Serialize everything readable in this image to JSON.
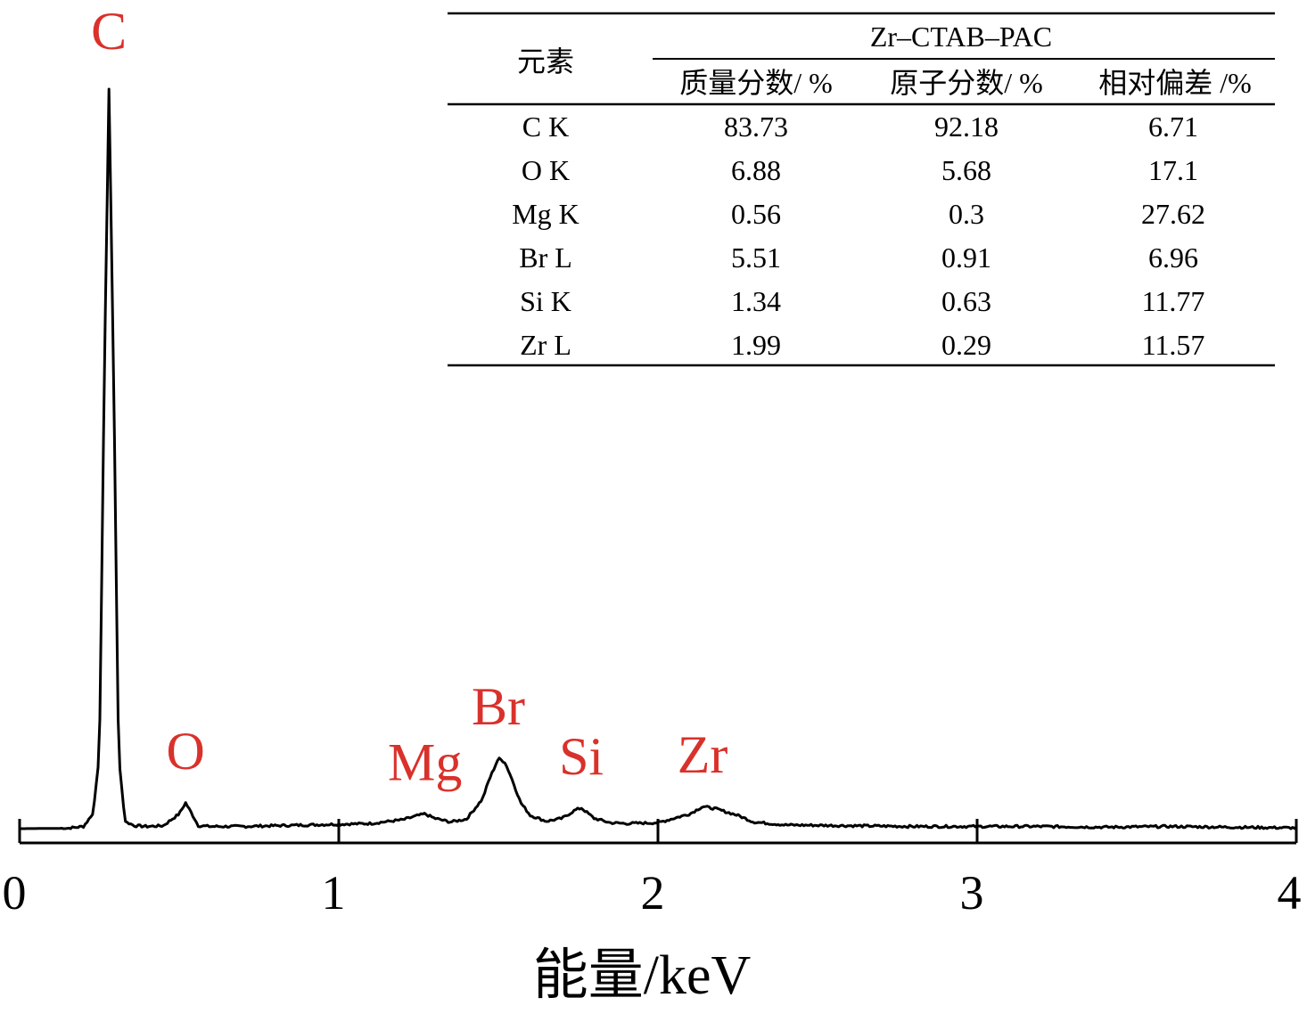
{
  "chart_data": {
    "type": "line",
    "xlabel": "能量/keV",
    "ylabel": "",
    "xlim": [
      0,
      4
    ],
    "x_ticks": [
      "0",
      "1",
      "2",
      "3",
      "4"
    ],
    "grid": false,
    "series": [
      {
        "x": [
          0.0,
          0.15,
          0.2,
          0.23,
          0.25,
          0.265,
          0.28,
          0.295,
          0.31,
          0.33,
          0.36,
          0.4,
          0.45,
          0.5,
          0.52,
          0.54,
          0.56,
          0.6,
          0.7,
          0.8,
          0.9,
          1.0,
          1.1,
          1.2,
          1.25,
          1.27,
          1.3,
          1.35,
          1.4,
          1.45,
          1.47,
          1.5,
          1.52,
          1.54,
          1.57,
          1.6,
          1.65,
          1.7,
          1.74,
          1.76,
          1.8,
          1.85,
          1.9,
          2.0,
          2.05,
          2.1,
          2.14,
          2.18,
          2.25,
          2.3,
          2.4,
          2.6,
          2.8,
          3.0,
          3.2,
          3.4,
          3.6,
          3.8,
          4.0
        ],
        "y": [
          0,
          0.5,
          3,
          20,
          100,
          600,
          1000,
          600,
          100,
          10,
          4,
          3,
          4,
          20,
          35,
          20,
          4,
          3,
          3,
          4,
          5,
          6,
          7,
          12,
          18,
          20,
          14,
          9,
          13,
          40,
          65,
          95,
          90,
          70,
          35,
          18,
          10,
          14,
          25,
          28,
          14,
          8,
          7,
          8,
          14,
          20,
          30,
          27,
          18,
          9,
          5,
          4,
          3,
          3,
          3,
          2,
          3,
          2,
          1
        ]
      }
    ],
    "peak_labels": [
      {
        "text": "C",
        "x": 0.28
      },
      {
        "text": "O",
        "x": 0.52
      },
      {
        "text": "Mg",
        "x": 1.27
      },
      {
        "text": "Br",
        "x": 1.5
      },
      {
        "text": "Si",
        "x": 1.76
      },
      {
        "text": "Zr",
        "x": 2.14
      }
    ],
    "colors": {
      "line": "#000000",
      "peak_label": "#d9312b"
    }
  },
  "table": {
    "row_header": "元素",
    "group_header": "Zr–CTAB–PAC",
    "columns": [
      "质量分数/ %",
      "原子分数/ %",
      "相对偏差 /%"
    ],
    "rows": [
      [
        "C K",
        "83.73",
        "92.18",
        "6.71"
      ],
      [
        "O K",
        "6.88",
        "5.68",
        "17.1"
      ],
      [
        "Mg K",
        "0.56",
        "0.3",
        "27.62"
      ],
      [
        "Br L",
        "5.51",
        "0.91",
        "6.96"
      ],
      [
        "Si K",
        "1.34",
        "0.63",
        "11.77"
      ],
      [
        "Zr L",
        "1.99",
        "0.29",
        "11.57"
      ]
    ]
  }
}
